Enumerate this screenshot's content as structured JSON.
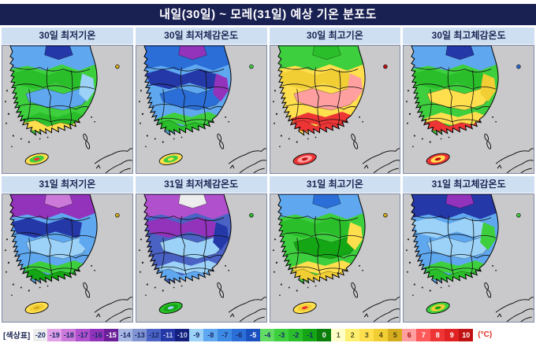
{
  "title": "내일(30일) ~ 모레(31일) 예상 기온 분포도",
  "colors": {
    "title_bg": "#192052",
    "header_bg": "#cfdff2",
    "header_fg": "#1b2653",
    "sea": "#c9c9cb",
    "panel_border": "#7c8aa8",
    "unit_fg": "#e03020"
  },
  "panels": [
    {
      "label": "30일 최저기온",
      "map": {
        "base": "#3ecf3e",
        "north": "#5fa8f0",
        "north_accent": "#2438a8",
        "upper": "#2abf2a",
        "center": "#5fa8f0",
        "east": "#9cd2f8",
        "south": "#2abf2a",
        "coast": "#ffdf4d",
        "islet": "#d4ac1e",
        "jeju": [
          "#ffdf4d",
          "#3ecf3e",
          "#ee3535"
        ]
      }
    },
    {
      "label": "30일 최저체감온도",
      "map": {
        "base": "#5fa8f0",
        "north": "#2b6ed8",
        "north_accent": "#9333bb",
        "upper": "#2438a8",
        "center": "#2b6ed8",
        "east": "#9333bb",
        "south": "#3ecf3e",
        "coast": "#2abf2a",
        "islet": "#3ecf3e",
        "jeju": [
          "#ffdf4d",
          "#3ecf3e",
          "#ffdf4d"
        ]
      }
    },
    {
      "label": "30일 최고기온",
      "map": {
        "base": "#ffdf4d",
        "north": "#3ecf3e",
        "north_accent": "#2abf2a",
        "upper": "#f2ce35",
        "center": "#ff9f9f",
        "east": "#ff9f9f",
        "south": "#ee3535",
        "coast": "#ee3535",
        "islet": "#c01212",
        "jeju": [
          "#ee3535",
          "#ff9f9f",
          "#c01212"
        ]
      }
    },
    {
      "label": "30일 최고체감온도",
      "map": {
        "base": "#3ecf3e",
        "north": "#5fa8f0",
        "north_accent": "#2438a8",
        "upper": "#2abf2a",
        "center": "#ffdf4d",
        "east": "#f2ce35",
        "south": "#ffdf4d",
        "coast": "#ee3535",
        "islet": "#2b6ed8",
        "jeju": [
          "#ee3535",
          "#ffdf4d",
          "#c01212"
        ]
      }
    },
    {
      "label": "31일 최저기온",
      "map": {
        "base": "#5fa8f0",
        "north": "#9333bb",
        "north_accent": "#cc7ad9",
        "upper": "#2438a8",
        "center": "#9cd2f8",
        "east": "#5fa8f0",
        "south": "#3ecf3e",
        "coast": "#14a614",
        "islet": "#d4ac1e",
        "jeju": [
          "#ffdf4d",
          "#f2ce35",
          "#d4ac1e"
        ]
      }
    },
    {
      "label": "31일 최저체감온도",
      "map": {
        "base": "#4a62c4",
        "north": "#b050cc",
        "north_accent": "#ededed",
        "upper": "#9333bb",
        "center": "#9cd2f8",
        "east": "#2438a8",
        "south": "#9cd2f8",
        "coast": "#5fa8f0",
        "islet": "#2abf2a",
        "jeju": [
          "#2abf2a",
          "#14a614",
          "#9cd2f8"
        ]
      }
    },
    {
      "label": "31일 최고기온",
      "map": {
        "base": "#3ecf3e",
        "north": "#5fa8f0",
        "north_accent": "#2b6ed8",
        "upper": "#2abf2a",
        "center": "#14a614",
        "east": "#ffdf4d",
        "south": "#ffdf4d",
        "coast": "#f2ce35",
        "islet": "#d4ac1e",
        "jeju": [
          "#ffdf4d",
          "#f2ce35",
          "#ee3535"
        ]
      }
    },
    {
      "label": "31일 최고체감온도",
      "map": {
        "base": "#5fa8f0",
        "north": "#2438a8",
        "north_accent": "#9333bb",
        "upper": "#9cd2f8",
        "center": "#9cd2f8",
        "east": "#3ecf3e",
        "south": "#3ecf3e",
        "coast": "#2abf2a",
        "islet": "#3ecf3e",
        "jeju": [
          "#3ecf3e",
          "#f2ce35",
          "#14a614"
        ]
      }
    }
  ],
  "legend": {
    "label": "[색상표]",
    "unit": "(°C)",
    "cells": [
      {
        "value": "-20",
        "bg": "#ededed",
        "fg": "#1a2a6b"
      },
      {
        "value": "-19",
        "bg": "#e2a0e8",
        "fg": "#1a2a6b"
      },
      {
        "value": "-18",
        "bg": "#cc7ad9",
        "fg": "#1a2a6b"
      },
      {
        "value": "-17",
        "bg": "#b050cc",
        "fg": "#1a2a6b"
      },
      {
        "value": "-16",
        "bg": "#9333bb",
        "fg": "#1a2a6b"
      },
      {
        "value": "-15",
        "bg": "#6a1f99",
        "fg": "#ffffff"
      },
      {
        "value": "-14",
        "bg": "#a8b6e2",
        "fg": "#1a2a6b"
      },
      {
        "value": "-13",
        "bg": "#8094d2",
        "fg": "#1a2a6b"
      },
      {
        "value": "-12",
        "bg": "#4a62c4",
        "fg": "#1a2a6b"
      },
      {
        "value": "-11",
        "bg": "#2438a8",
        "fg": "#c4cbe8"
      },
      {
        "value": "-10",
        "bg": "#14207e",
        "fg": "#c4cbe8"
      },
      {
        "value": "-9",
        "bg": "#9cd2f8",
        "fg": "#1a2a6b"
      },
      {
        "value": "-8",
        "bg": "#5fa8f0",
        "fg": "#1a2a6b"
      },
      {
        "value": "-7",
        "bg": "#3d8ae4",
        "fg": "#1a2a6b"
      },
      {
        "value": "-6",
        "bg": "#2b6ed8",
        "fg": "#1a2a6b"
      },
      {
        "value": "-5",
        "bg": "#1b50c0",
        "fg": "#ffffff"
      },
      {
        "value": "-4",
        "bg": "#63dc63",
        "fg": "#1a2a6b"
      },
      {
        "value": "-3",
        "bg": "#3ecf3e",
        "fg": "#1a2a6b"
      },
      {
        "value": "-2",
        "bg": "#2abf2a",
        "fg": "#1a2a6b"
      },
      {
        "value": "-1",
        "bg": "#14a614",
        "fg": "#1a2a6b"
      },
      {
        "value": "0",
        "bg": "#0b7d0b",
        "fg": "#ffffff"
      },
      {
        "value": "1",
        "bg": "#ffffc8",
        "fg": "#555533"
      },
      {
        "value": "2",
        "bg": "#ffef70",
        "fg": "#555522"
      },
      {
        "value": "3",
        "bg": "#ffdf4d",
        "fg": "#555522"
      },
      {
        "value": "4",
        "bg": "#f2ce35",
        "fg": "#554411"
      },
      {
        "value": "5",
        "bg": "#d4ac1e",
        "fg": "#554411"
      },
      {
        "value": "6",
        "bg": "#ff9f9f",
        "fg": "#aa1111"
      },
      {
        "value": "7",
        "bg": "#ff5a5a",
        "fg": "#ffffff"
      },
      {
        "value": "8",
        "bg": "#ee3535",
        "fg": "#ffffff"
      },
      {
        "value": "9",
        "bg": "#e02222",
        "fg": "#ffffff"
      },
      {
        "value": "10",
        "bg": "#c01212",
        "fg": "#ffffff"
      }
    ]
  }
}
